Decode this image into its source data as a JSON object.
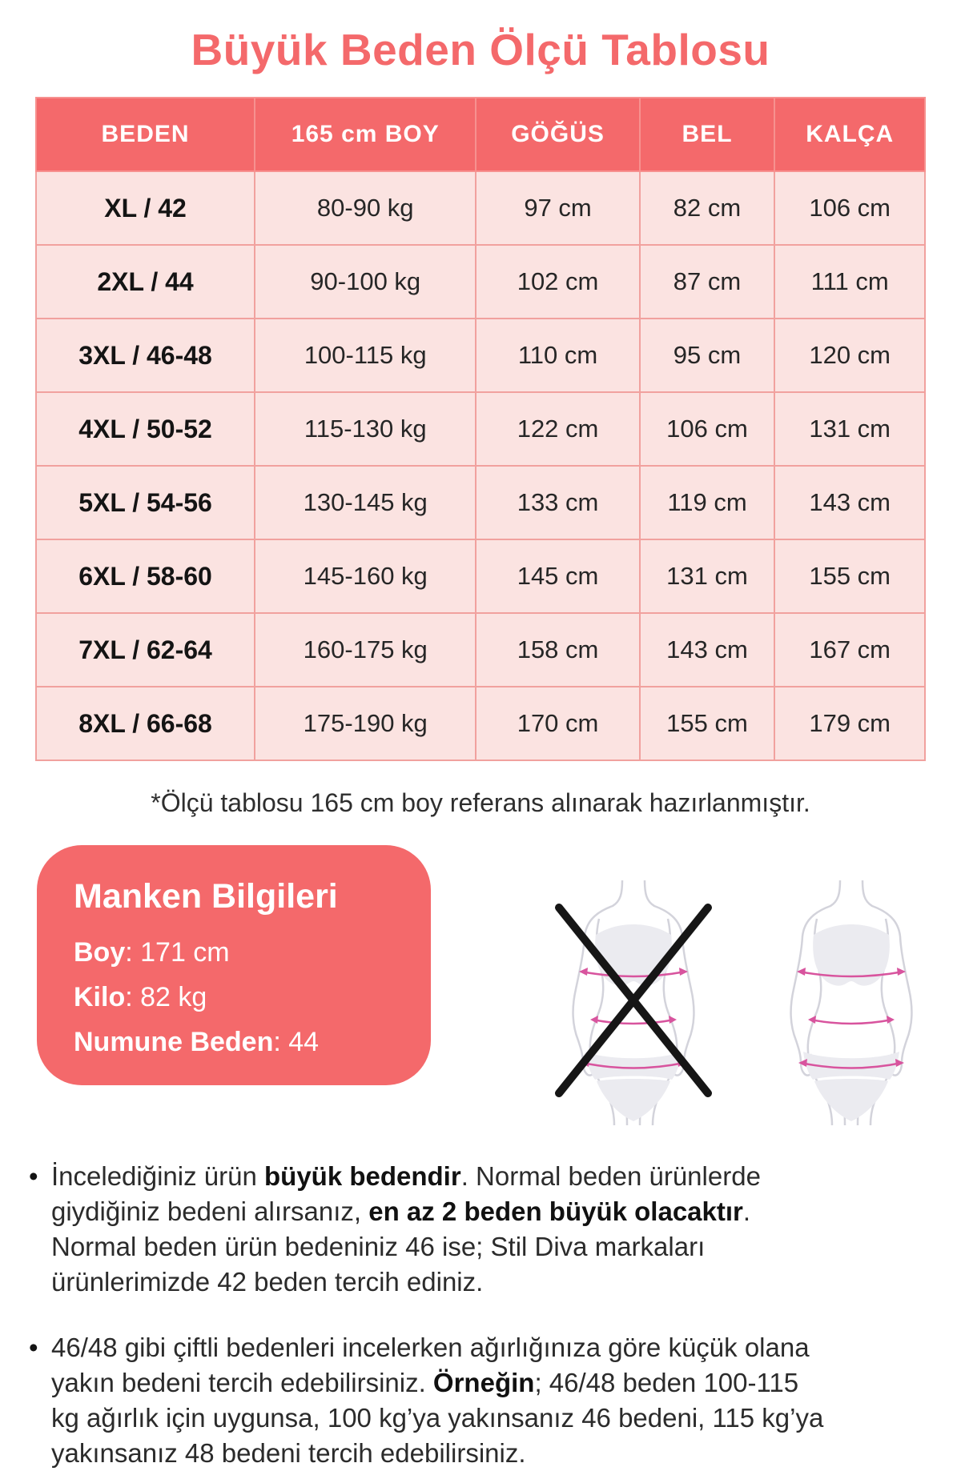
{
  "title": "Büyük Beden Ölçü Tablosu",
  "table": {
    "headers": [
      "BEDEN",
      "165 cm BOY",
      "GÖĞÜS",
      "BEL",
      "KALÇA"
    ],
    "rows": [
      [
        "XL / 42",
        "80-90 kg",
        "97 cm",
        "82 cm",
        "106 cm"
      ],
      [
        "2XL / 44",
        "90-100 kg",
        "102 cm",
        "87 cm",
        "111 cm"
      ],
      [
        "3XL / 46-48",
        "100-115 kg",
        "110 cm",
        "95 cm",
        "120 cm"
      ],
      [
        "4XL / 50-52",
        "115-130 kg",
        "122 cm",
        "106 cm",
        "131 cm"
      ],
      [
        "5XL / 54-56",
        "130-145 kg",
        "133 cm",
        "119 cm",
        "143 cm"
      ],
      [
        "6XL / 58-60",
        "145-160 kg",
        "145 cm",
        "131 cm",
        "155 cm"
      ],
      [
        "7XL / 62-64",
        "160-175 kg",
        "158 cm",
        "143 cm",
        "167 cm"
      ],
      [
        "8XL / 66-68",
        "175-190 kg",
        "170 cm",
        "155 cm",
        "179 cm"
      ]
    ],
    "footnote": "*Ölçü tablosu 165 cm boy referans alınarak hazırlanmıştır."
  },
  "model_info": {
    "title": "Manken Bilgileri",
    "fields": [
      {
        "label": "Boy",
        "value": "171 cm"
      },
      {
        "label": "Kilo",
        "value": "82 kg"
      },
      {
        "label": "Numune Beden",
        "value": "44"
      }
    ]
  },
  "icons": {
    "left": "crossed-body-measurement-figure-icon",
    "right": "body-measurement-figure-icon"
  },
  "notes": [
    {
      "segments": [
        {
          "text": "İncelediğiniz ürün ",
          "bold": false
        },
        {
          "text": "büyük bedendir",
          "bold": true
        },
        {
          "text": ". Normal beden ürünlerde giydiğiniz bedeni alırsanız, ",
          "bold": false
        },
        {
          "text": "en az 2 beden büyük olacaktır",
          "bold": true
        },
        {
          "text": ". Normal beden ürün bedeniniz 46 ise; Stil Diva markaları ürünlerimizde 42 beden tercih ediniz.",
          "bold": false
        }
      ]
    },
    {
      "segments": [
        {
          "text": "46/48 gibi çiftli bedenleri incelerken ağırlığınıza göre küçük olana yakın bedeni tercih edebilirsiniz. ",
          "bold": false
        },
        {
          "text": "Örneğin",
          "bold": true
        },
        {
          "text": "; 46/48 beden 100-115 kg ağırlık için uygunsa, 100 kg’ya yakınsanız 46 bedeni, 115 kg’ya yakınsanız 48 bedeni tercih edebilirsiniz.",
          "bold": false
        }
      ]
    }
  ],
  "colors": {
    "accent": "#f4696b",
    "table_row_bg": "#fbe3e1",
    "table_border": "#f1a19e",
    "measure_line": "#d8549e"
  }
}
